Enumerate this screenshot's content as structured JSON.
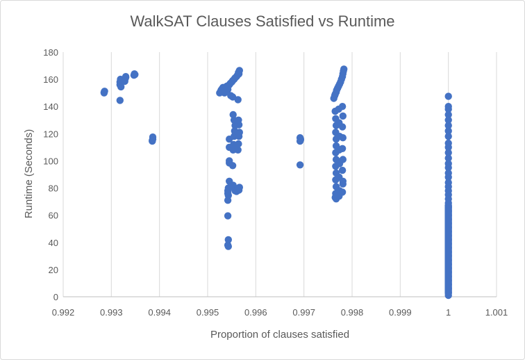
{
  "chart_data": {
    "type": "scatter",
    "title": "WalkSAT Clauses Satisfied vs Runtime",
    "xlabel": "Proportion of clauses satisfied",
    "ylabel": "Runtime (Seconds)",
    "xlim": [
      0.992,
      1.001
    ],
    "ylim": [
      0,
      180
    ],
    "x_ticks": [
      "0.992",
      "0.993",
      "0.994",
      "0.995",
      "0.996",
      "0.997",
      "0.998",
      "0.999",
      "1",
      "1.001"
    ],
    "y_ticks": [
      "0",
      "20",
      "40",
      "60",
      "80",
      "100",
      "120",
      "140",
      "160",
      "180"
    ],
    "grid": "vertical",
    "legend": "none",
    "point_color": "#4472c4",
    "series": [
      {
        "points": [
          [
            0.99285,
            150.5
          ],
          [
            0.99286,
            151.2
          ],
          [
            0.99285,
            150
          ],
          [
            0.99318,
            156
          ],
          [
            0.99318,
            158
          ],
          [
            0.99319,
            160
          ],
          [
            0.9932,
            154.5
          ],
          [
            0.99318,
            144.5
          ],
          [
            0.99328,
            158.5
          ],
          [
            0.99329,
            160.5
          ],
          [
            0.9933,
            161.5
          ],
          [
            0.9933,
            162
          ],
          [
            0.99347,
            163
          ],
          [
            0.99348,
            164
          ],
          [
            0.99349,
            163.5
          ],
          [
            0.99385,
            114.5
          ],
          [
            0.99386,
            116
          ],
          [
            0.99386,
            117.5
          ],
          [
            0.99385,
            115
          ],
          [
            0.99525,
            150
          ],
          [
            0.99527,
            151
          ],
          [
            0.99528,
            152
          ],
          [
            0.9953,
            153
          ],
          [
            0.99532,
            154
          ],
          [
            0.99535,
            150
          ],
          [
            0.99537,
            151.5
          ],
          [
            0.9954,
            155
          ],
          [
            0.99542,
            152.5
          ],
          [
            0.99545,
            156
          ],
          [
            0.99547,
            157
          ],
          [
            0.9955,
            158
          ],
          [
            0.99552,
            159
          ],
          [
            0.99555,
            160
          ],
          [
            0.99557,
            161
          ],
          [
            0.9956,
            162
          ],
          [
            0.99562,
            163
          ],
          [
            0.99564,
            165
          ],
          [
            0.99566,
            166.5
          ],
          [
            0.99565,
            164
          ],
          [
            0.99563,
            145
          ],
          [
            0.99552,
            147
          ],
          [
            0.99548,
            148
          ],
          [
            0.99545,
            116
          ],
          [
            0.99545,
            110
          ],
          [
            0.99545,
            100
          ],
          [
            0.99545,
            98.5
          ],
          [
            0.99545,
            85
          ],
          [
            0.99543,
            80
          ],
          [
            0.99542,
            78
          ],
          [
            0.99542,
            76
          ],
          [
            0.99543,
            74.5
          ],
          [
            0.99542,
            71
          ],
          [
            0.99542,
            59.5
          ],
          [
            0.99543,
            42
          ],
          [
            0.99542,
            38
          ],
          [
            0.99543,
            37
          ],
          [
            0.99552,
            96.5
          ],
          [
            0.99553,
            108
          ],
          [
            0.99556,
            110
          ],
          [
            0.99554,
            112
          ],
          [
            0.99555,
            118
          ],
          [
            0.99556,
            122
          ],
          [
            0.99557,
            126
          ],
          [
            0.99555,
            130
          ],
          [
            0.99553,
            134
          ],
          [
            0.99563,
            108
          ],
          [
            0.99564,
            112.5
          ],
          [
            0.99565,
            118
          ],
          [
            0.99566,
            121
          ],
          [
            0.99565,
            126.5
          ],
          [
            0.99564,
            130
          ],
          [
            0.99553,
            82
          ],
          [
            0.99555,
            80
          ],
          [
            0.99557,
            78
          ],
          [
            0.9956,
            77.5
          ],
          [
            0.99563,
            79
          ],
          [
            0.99566,
            80.5
          ],
          [
            0.99565,
            78.5
          ],
          [
            0.99692,
            114.5
          ],
          [
            0.99693,
            116
          ],
          [
            0.99692,
            117
          ],
          [
            0.99693,
            115.5
          ],
          [
            0.99692,
            97
          ],
          [
            0.99762,
            146
          ],
          [
            0.99764,
            148
          ],
          [
            0.99765,
            149
          ],
          [
            0.99767,
            150.5
          ],
          [
            0.99768,
            152
          ],
          [
            0.9977,
            153.5
          ],
          [
            0.99772,
            155
          ],
          [
            0.99774,
            156.5
          ],
          [
            0.99776,
            158
          ],
          [
            0.99778,
            160
          ],
          [
            0.9978,
            162
          ],
          [
            0.99781,
            164
          ],
          [
            0.99782,
            166
          ],
          [
            0.99783,
            167.5
          ],
          [
            0.99765,
            136.5
          ],
          [
            0.99766,
            131
          ],
          [
            0.99767,
            126
          ],
          [
            0.99766,
            121
          ],
          [
            0.99767,
            116
          ],
          [
            0.99767,
            111
          ],
          [
            0.99766,
            106
          ],
          [
            0.99767,
            101
          ],
          [
            0.99766,
            96
          ],
          [
            0.99767,
            91
          ],
          [
            0.99766,
            86
          ],
          [
            0.99767,
            81
          ],
          [
            0.99766,
            76
          ],
          [
            0.99765,
            73
          ],
          [
            0.99767,
            72
          ],
          [
            0.99772,
            138
          ],
          [
            0.99773,
            128
          ],
          [
            0.99774,
            118
          ],
          [
            0.99773,
            108
          ],
          [
            0.99774,
            98
          ],
          [
            0.99773,
            88
          ],
          [
            0.99774,
            78
          ],
          [
            0.99773,
            74
          ],
          [
            0.9978,
            140
          ],
          [
            0.99781,
            133
          ],
          [
            0.9978,
            125
          ],
          [
            0.99781,
            117
          ],
          [
            0.9978,
            109
          ],
          [
            0.99781,
            101
          ],
          [
            0.9978,
            93
          ],
          [
            0.99781,
            85
          ],
          [
            0.9978,
            77
          ],
          [
            0.99781,
            83
          ],
          [
            1.0,
            147.5
          ],
          [
            1.0,
            140
          ],
          [
            1.0,
            138
          ],
          [
            1.0,
            134
          ],
          [
            1.0,
            130
          ],
          [
            1.0,
            126
          ],
          [
            1.0,
            122
          ],
          [
            1.0,
            118
          ],
          [
            1.0,
            113
          ],
          [
            1.0,
            110
          ],
          [
            1.0,
            106
          ],
          [
            1.0,
            102
          ],
          [
            1.0,
            98
          ],
          [
            1.0,
            95
          ],
          [
            1.0,
            91
          ],
          [
            1.0,
            88
          ],
          [
            1.0,
            84
          ],
          [
            1.0,
            81
          ],
          [
            1.0,
            78
          ],
          [
            1.0,
            75
          ],
          [
            1.0,
            72
          ],
          [
            1.0,
            69
          ],
          [
            1.0,
            66
          ],
          [
            1.0,
            63
          ],
          [
            1.0,
            60
          ],
          [
            1.0,
            57
          ],
          [
            1.0,
            54
          ],
          [
            1.0,
            51
          ],
          [
            1.0,
            48
          ],
          [
            1.0,
            45
          ],
          [
            1.0,
            42
          ],
          [
            1.0,
            39
          ],
          [
            1.0,
            36
          ],
          [
            1.0,
            33
          ],
          [
            1.0,
            30
          ],
          [
            1.0,
            27
          ],
          [
            1.0,
            24
          ],
          [
            1.0,
            21
          ],
          [
            1.0,
            18
          ],
          [
            1.0,
            15
          ],
          [
            1.0,
            12
          ],
          [
            1.0,
            9
          ],
          [
            1.0,
            6
          ],
          [
            1.0,
            3
          ],
          [
            1.0,
            1
          ]
        ]
      }
    ]
  }
}
